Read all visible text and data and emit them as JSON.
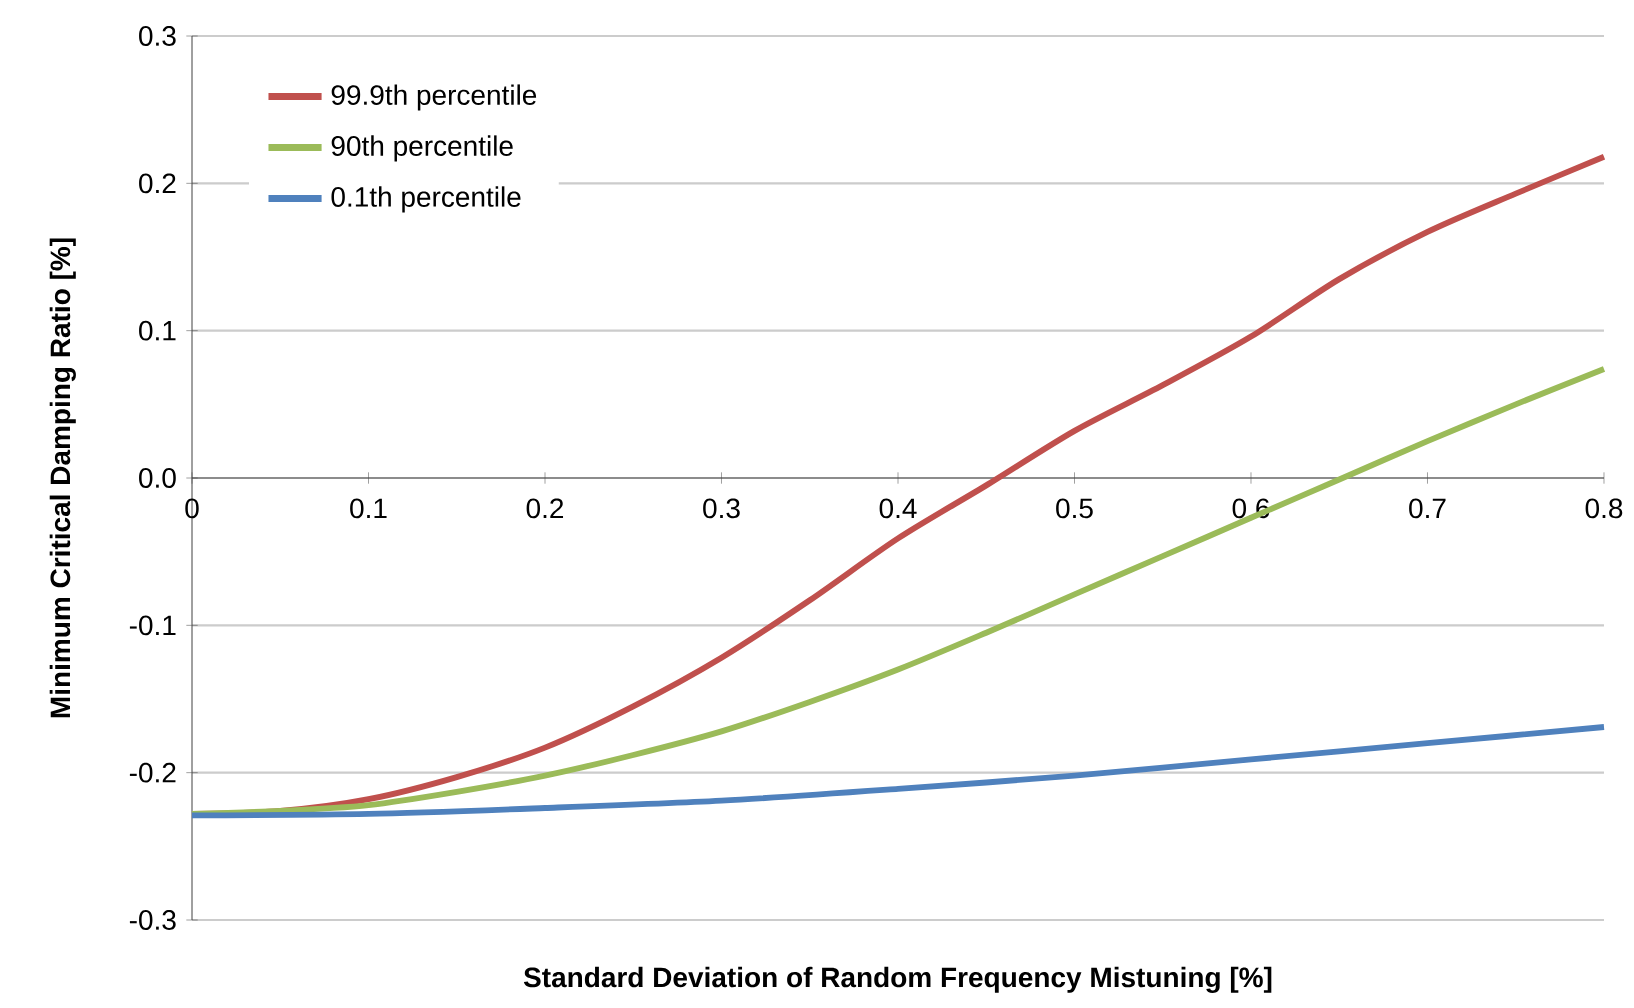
{
  "chart_data": {
    "type": "line",
    "xlabel": "Standard Deviation of Random Frequency Mistuning [%]",
    "ylabel": "Minimum Critical Damping Ratio [%]",
    "xlim": [
      0,
      0.8
    ],
    "xticks": [
      0,
      0.1,
      0.2,
      0.3,
      0.4,
      0.5,
      0.6,
      0.7,
      0.8
    ],
    "ylim": [
      -0.3,
      0.3
    ],
    "yticks": [
      -0.3,
      -0.2,
      -0.1,
      {
        "value": 0,
        "label": "0.0"
      },
      0.1,
      0.2,
      0.3
    ],
    "grid": "y",
    "legend": "top left",
    "series": [
      {
        "name": "99.9th percentile",
        "color": "#c0504d",
        "x": [
          0,
          0.05,
          0.1,
          0.15,
          0.2,
          0.25,
          0.3,
          0.35,
          0.4,
          0.45,
          0.5,
          0.55,
          0.6,
          0.65,
          0.7,
          0.75,
          0.8
        ],
        "values": [
          -0.228,
          -0.226,
          -0.218,
          -0.203,
          -0.183,
          -0.155,
          -0.122,
          -0.083,
          -0.041,
          -0.005,
          0.032,
          0.063,
          0.096,
          0.135,
          0.167,
          0.193,
          0.218
        ]
      },
      {
        "name": "90th percentile",
        "color": "#9bbb59",
        "x": [
          0,
          0.05,
          0.1,
          0.15,
          0.2,
          0.25,
          0.3,
          0.35,
          0.4,
          0.45,
          0.5,
          0.55,
          0.6,
          0.65,
          0.7,
          0.75,
          0.8
        ],
        "values": [
          -0.228,
          -0.226,
          -0.222,
          -0.213,
          -0.202,
          -0.188,
          -0.172,
          -0.152,
          -0.13,
          -0.105,
          -0.079,
          -0.053,
          -0.027,
          -0.001,
          0.025,
          0.05,
          0.074
        ]
      },
      {
        "name": "0.1th percentile",
        "color": "#4f81bd",
        "x": [
          0,
          0.1,
          0.2,
          0.3,
          0.4,
          0.5,
          0.6,
          0.7,
          0.8
        ],
        "values": [
          -0.229,
          -0.228,
          -0.224,
          -0.219,
          -0.211,
          -0.202,
          -0.191,
          -0.18,
          -0.169
        ]
      }
    ]
  }
}
